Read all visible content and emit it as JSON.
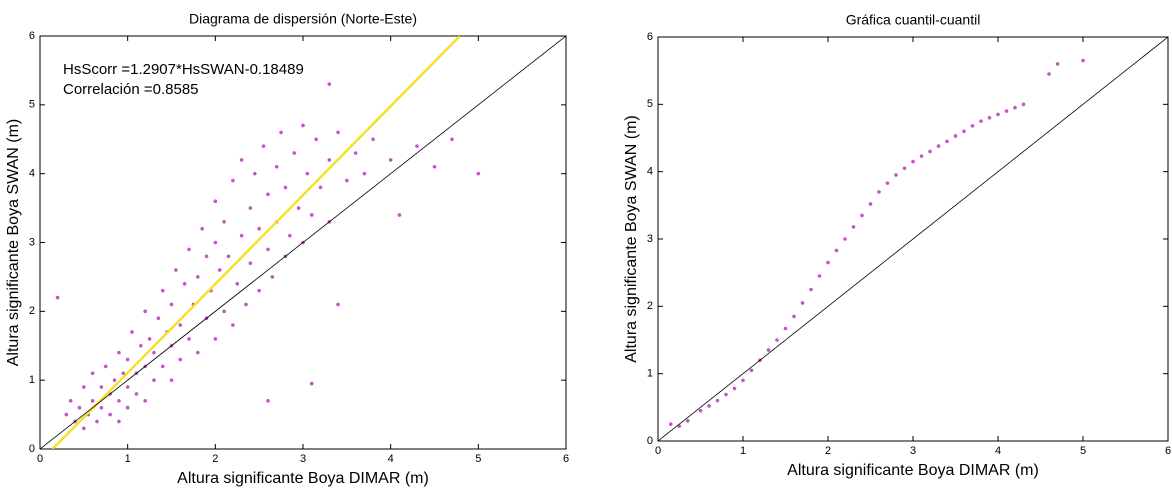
{
  "chart_data": [
    {
      "type": "scatter",
      "title": "Diagrama de dispersión (Norte-Este)",
      "xlabel": "Altura significante Boya DIMAR (m)",
      "ylabel": "Altura significante Boya SWAN (m)",
      "annotations": [
        "HsScorr =1.2907*HsSWAN-0.18489",
        "Correlación =0.8585"
      ],
      "xlim": [
        0,
        6
      ],
      "ylim": [
        0,
        6
      ],
      "xticks": [
        0,
        1,
        2,
        3,
        4,
        5,
        6
      ],
      "yticks": [
        0,
        1,
        2,
        3,
        4,
        5,
        6
      ],
      "series": [
        {
          "mode": "points",
          "color": "#c455c8",
          "x": [
            0.3,
            0.35,
            0.4,
            0.45,
            0.5,
            0.5,
            0.55,
            0.6,
            0.6,
            0.65,
            0.7,
            0.7,
            0.75,
            0.8,
            0.8,
            0.85,
            0.9,
            0.9,
            0.9,
            0.95,
            1.0,
            1.0,
            1.0,
            1.05,
            1.1,
            1.1,
            1.15,
            1.2,
            1.2,
            1.2,
            1.25,
            1.3,
            1.3,
            1.35,
            1.4,
            1.4,
            1.45,
            1.5,
            1.5,
            1.5,
            1.55,
            1.6,
            1.6,
            1.65,
            1.7,
            1.7,
            1.75,
            1.8,
            1.8,
            1.85,
            1.9,
            1.9,
            1.95,
            2.0,
            2.0,
            2.0,
            2.05,
            2.1,
            2.1,
            2.15,
            2.2,
            2.2,
            2.25,
            2.3,
            2.3,
            2.35,
            2.4,
            2.4,
            2.45,
            2.5,
            2.5,
            2.55,
            2.6,
            2.6,
            2.65,
            2.7,
            2.7,
            2.75,
            2.8,
            2.8,
            2.85,
            2.9,
            2.95,
            3.0,
            3.0,
            3.05,
            3.1,
            3.15,
            3.2,
            3.3,
            3.3,
            3.4,
            3.5,
            3.6,
            3.7,
            3.8,
            4.0,
            4.1,
            4.3,
            4.5,
            4.7,
            5.0,
            0.2,
            3.3,
            2.6,
            3.4,
            3.1
          ],
          "values": [
            0.5,
            0.7,
            0.4,
            0.6,
            0.3,
            0.9,
            0.5,
            0.7,
            1.1,
            0.4,
            0.6,
            0.9,
            1.2,
            0.5,
            0.8,
            1.0,
            0.4,
            0.7,
            1.4,
            1.1,
            0.6,
            0.9,
            1.3,
            1.7,
            0.8,
            1.1,
            1.5,
            0.7,
            1.2,
            2.0,
            1.6,
            1.0,
            1.4,
            1.9,
            1.2,
            2.3,
            1.7,
            1.0,
            1.5,
            2.1,
            2.6,
            1.3,
            1.8,
            2.4,
            1.6,
            2.9,
            2.1,
            1.4,
            2.5,
            3.2,
            1.9,
            2.8,
            2.3,
            1.6,
            3.0,
            3.6,
            2.6,
            2.0,
            3.3,
            2.8,
            1.8,
            3.9,
            2.4,
            3.1,
            4.2,
            2.1,
            3.5,
            2.7,
            4.0,
            2.3,
            3.2,
            4.4,
            2.9,
            3.7,
            2.5,
            4.1,
            3.3,
            4.6,
            2.8,
            3.8,
            3.1,
            4.3,
            3.5,
            4.7,
            3.0,
            4.0,
            3.4,
            4.5,
            3.8,
            4.2,
            3.3,
            4.6,
            3.9,
            4.3,
            4.0,
            4.5,
            4.2,
            3.4,
            4.4,
            4.1,
            4.5,
            4.0,
            2.2,
            5.3,
            0.7,
            2.1,
            0.95
          ]
        },
        {
          "mode": "line",
          "color": "#f5e02a",
          "x": [
            0.143,
            4.79
          ],
          "values": [
            0,
            6
          ]
        },
        {
          "mode": "line",
          "color": "#000000",
          "x": [
            0,
            6
          ],
          "values": [
            0,
            6
          ]
        }
      ]
    },
    {
      "type": "scatter",
      "title": "Gráfica cuantil-cuantil",
      "xlabel": "Altura significante Boya DIMAR (m)",
      "ylabel": "Altura significante Boya SWAN (m)",
      "xlim": [
        0,
        6
      ],
      "ylim": [
        0,
        6
      ],
      "xticks": [
        0,
        1,
        2,
        3,
        4,
        5,
        6
      ],
      "yticks": [
        0,
        1,
        2,
        3,
        4,
        5,
        6
      ],
      "series": [
        {
          "mode": "points",
          "color": "#c455c8",
          "x": [
            0.15,
            0.25,
            0.35,
            0.5,
            0.6,
            0.7,
            0.8,
            0.9,
            1.0,
            1.1,
            1.2,
            1.3,
            1.4,
            1.5,
            1.6,
            1.7,
            1.8,
            1.9,
            2.0,
            2.1,
            2.2,
            2.3,
            2.4,
            2.5,
            2.6,
            2.7,
            2.8,
            2.9,
            3.0,
            3.1,
            3.2,
            3.3,
            3.4,
            3.5,
            3.6,
            3.7,
            3.8,
            3.9,
            4.0,
            4.1,
            4.2,
            4.3,
            4.6,
            4.7,
            5.0
          ],
          "values": [
            0.25,
            0.22,
            0.3,
            0.45,
            0.52,
            0.6,
            0.69,
            0.78,
            0.9,
            1.05,
            1.2,
            1.35,
            1.5,
            1.67,
            1.85,
            2.05,
            2.25,
            2.45,
            2.65,
            2.83,
            3.0,
            3.18,
            3.35,
            3.52,
            3.7,
            3.83,
            3.95,
            4.05,
            4.15,
            4.23,
            4.3,
            4.38,
            4.45,
            4.53,
            4.6,
            4.68,
            4.75,
            4.8,
            4.85,
            4.9,
            4.95,
            5.0,
            5.45,
            5.6,
            5.65
          ]
        },
        {
          "mode": "line",
          "color": "#000000",
          "x": [
            0,
            6
          ],
          "values": [
            0,
            6
          ]
        }
      ]
    }
  ]
}
